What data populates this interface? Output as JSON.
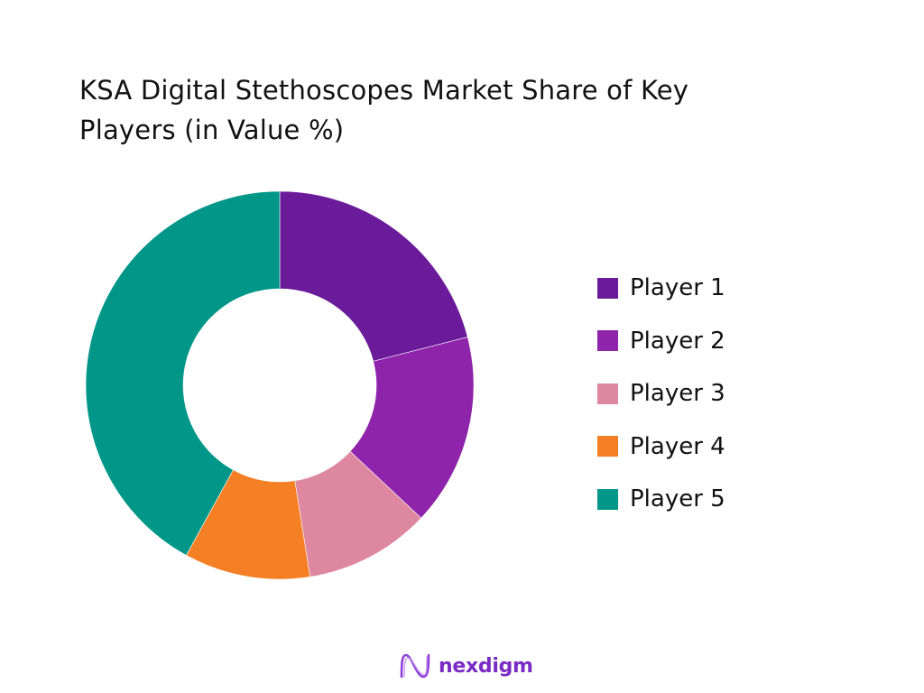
{
  "title_lines": [
    "KSA Digital Stethoscopes Market Share of Key",
    "Players (in Value %)"
  ],
  "chart_data": {
    "type": "pie",
    "variant": "donut",
    "title": "KSA Digital Stethoscopes Market Share of Key Players (in Value %)",
    "categories": [
      "Player 1",
      "Player 2",
      "Player 3",
      "Player 4",
      "Player 5"
    ],
    "values": [
      21,
      16,
      10.5,
      10.5,
      42
    ],
    "colors": [
      "#6a1b9a",
      "#8e24aa",
      "#de87a0",
      "#f47f24",
      "#009688"
    ],
    "legend_position": "right",
    "start_angle_deg": 0,
    "direction": "clockwise"
  },
  "legend": [
    {
      "label": "Player 1",
      "color": "#6a1b9a"
    },
    {
      "label": "Player 2",
      "color": "#8e24aa"
    },
    {
      "label": "Player 3",
      "color": "#de87a0"
    },
    {
      "label": "Player 4",
      "color": "#f47f24"
    },
    {
      "label": "Player 5",
      "color": "#009688"
    }
  ],
  "logo": {
    "text": "nexdigm",
    "color": "#7a2bc4"
  }
}
